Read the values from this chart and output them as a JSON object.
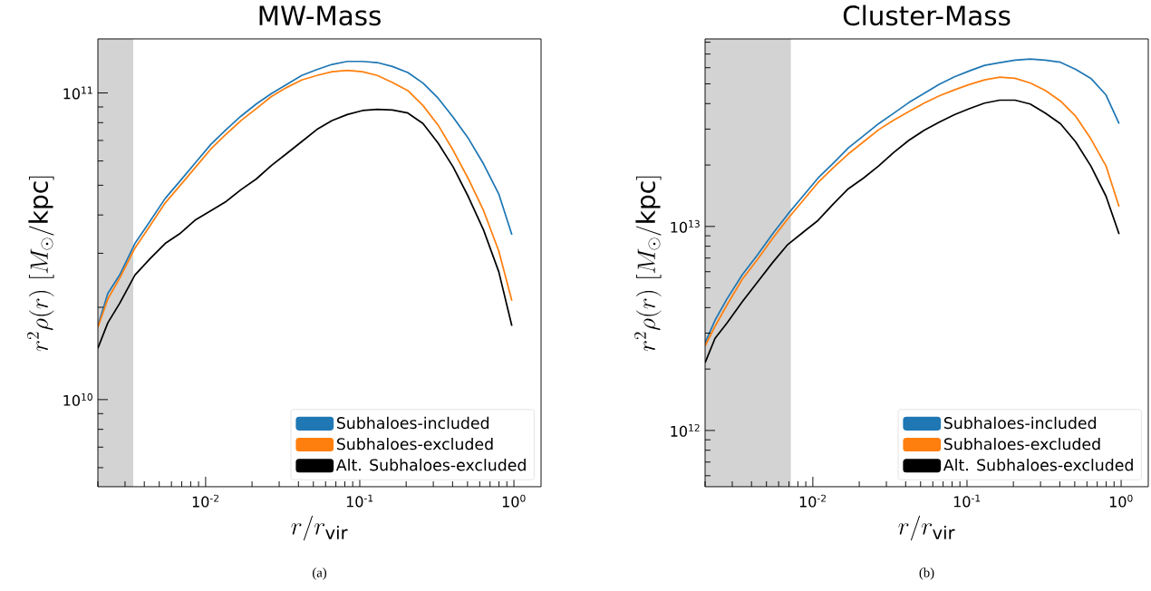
{
  "chart_data": [
    {
      "type": "line",
      "title": "MW-Mass",
      "xlabel": "r/r_{\\mathrm{vir}}",
      "ylabel": "r^2\\rho(r)\\ [M_\\odot/\\mathrm{kpc}]",
      "annotations": [
        "(a)"
      ],
      "log": "xy",
      "xlim": [
        0.002,
        1.5
      ],
      "ylim": [
        5200000000.0,
        150000000000.0
      ],
      "xticks": [
        {
          "value": 0.01,
          "label": "10$^{-2}$"
        },
        {
          "value": 0.1,
          "label": "10$^{-1}$"
        },
        {
          "value": 1,
          "label": "10$^{0}$"
        }
      ],
      "yticks": [
        {
          "value": 10000000000.0,
          "label": "10$^{10}$"
        },
        {
          "value": 100000000000.0,
          "label": "10$^{11}$"
        }
      ],
      "legend": "bottom right",
      "bands": [
        {
          "axis": "x",
          "from": 0.002,
          "to": 0.0034,
          "color": "#d3d3d3"
        }
      ],
      "x": [
        0.002,
        0.00232,
        0.00277,
        0.00348,
        0.00436,
        0.00547,
        0.00687,
        0.00861,
        0.0108,
        0.0136,
        0.017,
        0.0213,
        0.0267,
        0.0335,
        0.042,
        0.0527,
        0.0661,
        0.0829,
        0.104,
        0.13,
        0.163,
        0.205,
        0.257,
        0.322,
        0.404,
        0.507,
        0.636,
        0.798,
        0.97
      ],
      "series": [
        {
          "name": "Subhaloes-included",
          "color": "#1f77b4",
          "values": [
            17400000000.0,
            22200000000.0,
            25500000000.0,
            32300000000.0,
            38200000000.0,
            45300000000.0,
            51800000000.0,
            59300000000.0,
            67900000000.0,
            76000000000.0,
            84100000000.0,
            92000000000.0,
            99500000000.0,
            106500000000.0,
            114000000000.0,
            119200000000.0,
            123900000000.0,
            126700000000.0,
            126700000000.0,
            125600000000.0,
            121900000000.0,
            116600000000.0,
            107700000000.0,
            96200000000.0,
            83200000000.0,
            71000000000.0,
            58600000000.0,
            46800000000.0,
            34500000000.0
          ]
        },
        {
          "name": "Subhaloes-excluded",
          "color": "#ff7f0e",
          "values": [
            17200000000.0,
            21300000000.0,
            24900000000.0,
            31200000000.0,
            36900000000.0,
            43800000000.0,
            50100000000.0,
            57300000000.0,
            65600000000.0,
            73400000000.0,
            81300000000.0,
            88900000000.0,
            97300000000.0,
            104100000000.0,
            110200000000.0,
            114000000000.0,
            117300000000.0,
            118400000000.0,
            117300000000.0,
            114000000000.0,
            108200000000.0,
            101800000000.0,
            91000000000.0,
            78600000000.0,
            64900000000.0,
            52400000000.0,
            41300000000.0,
            30500000000.0,
            21000000000.0
          ]
        },
        {
          "name": "Alt. Subhaloes-excluded",
          "color": "#000000",
          "values": [
            14700000000.0,
            17800000000.0,
            20600000000.0,
            25500000000.0,
            28800000000.0,
            32300000000.0,
            34900000000.0,
            38600000000.0,
            41300000000.0,
            44300000000.0,
            48400000000.0,
            52400000000.0,
            58000000000.0,
            63400000000.0,
            69400000000.0,
            76000000000.0,
            81300000000.0,
            85000000000.0,
            87600000000.0,
            88400000000.0,
            88000000000.0,
            86000000000.0,
            79500000000.0,
            68700000000.0,
            57300000000.0,
            45800000000.0,
            35700000000.0,
            26100000000.0,
            17400000000.0
          ]
        }
      ]
    },
    {
      "type": "line",
      "title": "Cluster-Mass",
      "xlabel": "r/r_{\\mathrm{vir}}",
      "ylabel": "r^2\\rho(r)\\ [M_\\odot/\\mathrm{kpc}]",
      "annotations": [
        "(b)"
      ],
      "log": "xy",
      "xlim": [
        0.002,
        1.5
      ],
      "ylim": [
        530000000000.0,
        83000000000000.0
      ],
      "xticks": [
        {
          "value": 0.01,
          "label": "10$^{-2}$"
        },
        {
          "value": 0.1,
          "label": "10$^{-1}$"
        },
        {
          "value": 1,
          "label": "10$^{0}$"
        }
      ],
      "yticks": [
        {
          "value": 1000000000000.0,
          "label": "10$^{12}$"
        },
        {
          "value": 10000000000000.0,
          "label": "10$^{13}$"
        }
      ],
      "legend": "bottom right",
      "bands": [
        {
          "axis": "x",
          "from": 0.002,
          "to": 0.0072,
          "color": "#d3d3d3"
        }
      ],
      "x": [
        0.002,
        0.00232,
        0.00277,
        0.00348,
        0.00436,
        0.00547,
        0.00687,
        0.00861,
        0.0108,
        0.0136,
        0.017,
        0.0213,
        0.0267,
        0.0335,
        0.042,
        0.0527,
        0.0661,
        0.0829,
        0.104,
        0.13,
        0.163,
        0.205,
        0.257,
        0.322,
        0.404,
        0.507,
        0.636,
        0.798,
        0.97
      ],
      "series": [
        {
          "name": "Subhaloes-included",
          "color": "#1f77b4",
          "values": [
            2690000000000.0,
            3470000000000.0,
            4410000000000.0,
            5790000000000.0,
            7230000000000.0,
            9180000000000.0,
            11470000000000.0,
            14060000000000.0,
            17260000000000.0,
            20460000000000.0,
            24270000000000.0,
            27800000000000.0,
            31900000000000.0,
            35900000000000.0,
            40500000000000.0,
            44900000000000.0,
            49700000000000.0,
            54100000000000.0,
            57900000000000.0,
            61600000000000.0,
            63500000000000.0,
            65300000000000.0,
            66200000000000.0,
            65300000000000.0,
            63800000000000.0,
            58900000000000.0,
            53200000000000.0,
            44100000000000.0,
            31900000000000.0
          ]
        },
        {
          "name": "Subhaloes-excluded",
          "color": "#ff7f0e",
          "values": [
            2600000000000.0,
            3240000000000.0,
            4120000000000.0,
            5500000000000.0,
            6870000000000.0,
            8720000000000.0,
            10890000000000.0,
            13370000000000.0,
            16400000000000.0,
            19450000000000.0,
            22680000000000.0,
            25980000000000.0,
            29790000000000.0,
            33220000000000.0,
            36560000000000.0,
            40220000000000.0,
            43650000000000.0,
            46720000000000.0,
            49700000000000.0,
            52300000000000.0,
            53900000000000.0,
            53200000000000.0,
            50500000000000.0,
            46400000000000.0,
            41200000000000.0,
            34700000000000.0,
            26900000000000.0,
            19800000000000.0,
            12500000000000.0
          ]
        },
        {
          "name": "Alt. Subhaloes-excluded",
          "color": "#000000",
          "values": [
            2150000000000.0,
            2830000000000.0,
            3360000000000.0,
            4270000000000.0,
            5320000000000.0,
            6640000000000.0,
            8150000000000.0,
            9340000000000.0,
            10700000000000.0,
            12910000000000.0,
            15310000000000.0,
            17260000000000.0,
            19790000000000.0,
            23070000000000.0,
            26440000000000.0,
            29580000000000.0,
            32430000000000.0,
            35320000000000.0,
            37830000000000.0,
            40220000000000.0,
            41590000000000.0,
            41590000000000.0,
            39810000000000.0,
            35940000000000.0,
            31900000000000.0,
            25980000000000.0,
            19790000000000.0,
            14060000000000.0,
            9180000000000.0
          ]
        }
      ]
    }
  ]
}
